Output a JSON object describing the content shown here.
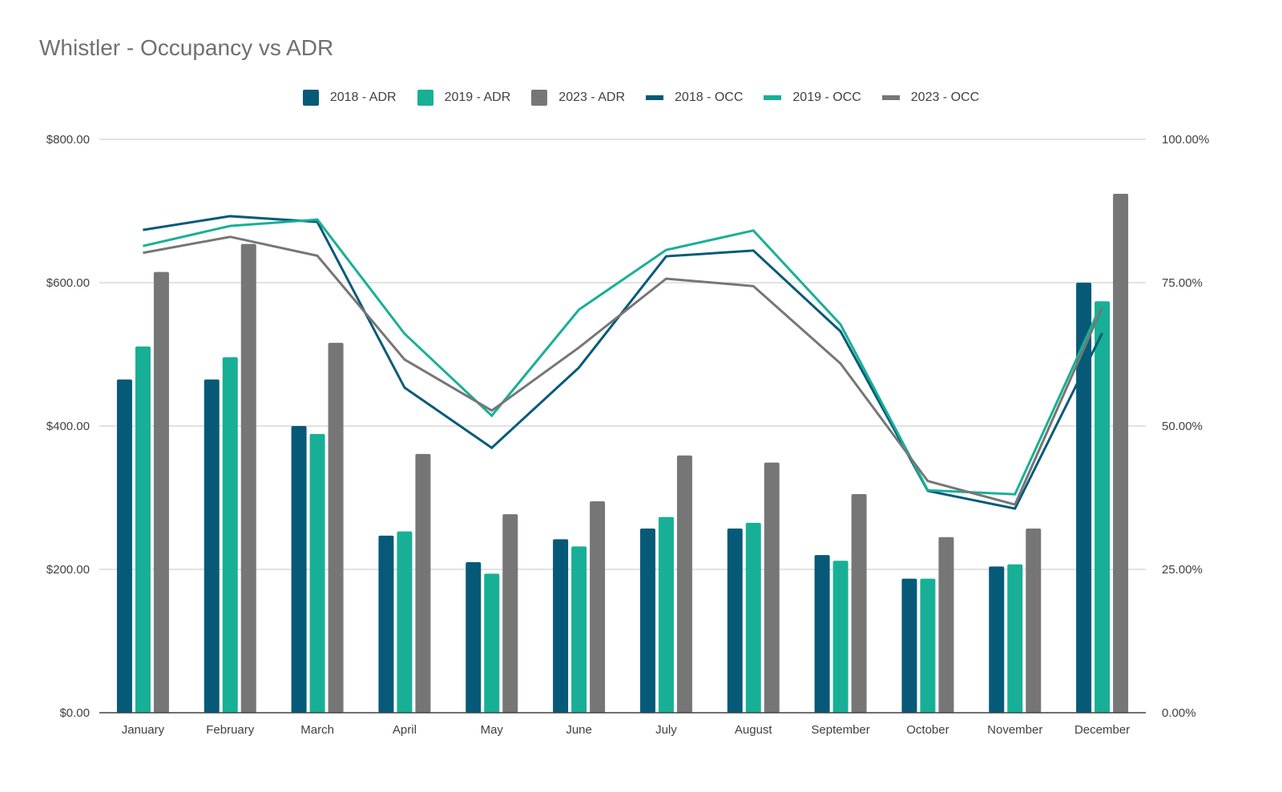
{
  "chart_data": {
    "type": "bar",
    "title": "Whistler - Occupancy vs ADR",
    "xlabel": "",
    "ylabel": "",
    "y2label": "",
    "categories": [
      "January",
      "February",
      "March",
      "April",
      "May",
      "June",
      "July",
      "August",
      "September",
      "October",
      "November",
      "December"
    ],
    "ylim": [
      0,
      800
    ],
    "y2lim": [
      0,
      100
    ],
    "yticks": [
      "$0.00",
      "$200.00",
      "$400.00",
      "$600.00",
      "$800.00"
    ],
    "y2ticks": [
      "0.00%",
      "25.00%",
      "50.00%",
      "75.00%",
      "100.00%"
    ],
    "grid": true,
    "legend_position": "top",
    "bar_series": [
      {
        "name": "2018 - ADR",
        "color": "#065a78",
        "values": [
          465,
          465,
          400,
          247,
          210,
          242,
          257,
          257,
          220,
          187,
          204,
          600
        ]
      },
      {
        "name": "2019 - ADR",
        "color": "#17b096",
        "values": [
          511,
          496,
          389,
          253,
          194,
          232,
          273,
          265,
          212,
          187,
          207,
          574
        ]
      },
      {
        "name": "2023 - ADR",
        "color": "#767676",
        "values": [
          615,
          654,
          516,
          361,
          277,
          295,
          359,
          349,
          305,
          245,
          257,
          724
        ]
      }
    ],
    "line_series": [
      {
        "name": "2018 - OCC",
        "color": "#065a78",
        "axis": "right",
        "values": [
          84.2,
          86.6,
          85.6,
          56.7,
          46.2,
          60.2,
          79.6,
          80.6,
          66.5,
          38.7,
          35.6,
          66.2
        ]
      },
      {
        "name": "2019 - OCC",
        "color": "#17b096",
        "axis": "right",
        "values": [
          81.4,
          84.9,
          86.0,
          66.1,
          51.8,
          70.3,
          80.7,
          84.1,
          67.7,
          38.8,
          38.1,
          71.5
        ]
      },
      {
        "name": "2023 - OCC",
        "color": "#767676",
        "axis": "right",
        "values": [
          80.2,
          83.0,
          79.7,
          61.6,
          52.7,
          63.7,
          75.7,
          74.4,
          60.9,
          40.4,
          36.3,
          70.7
        ]
      }
    ]
  },
  "legend": [
    {
      "label": "2018 - ADR",
      "kind": "box",
      "color": "#065a78"
    },
    {
      "label": "2019 - ADR",
      "kind": "box",
      "color": "#17b096"
    },
    {
      "label": "2023 - ADR",
      "kind": "box",
      "color": "#767676"
    },
    {
      "label": "2018 - OCC",
      "kind": "line",
      "color": "#065a78"
    },
    {
      "label": "2019 - OCC",
      "kind": "line",
      "color": "#17b096"
    },
    {
      "label": "2023 - OCC",
      "kind": "line",
      "color": "#767676"
    }
  ]
}
